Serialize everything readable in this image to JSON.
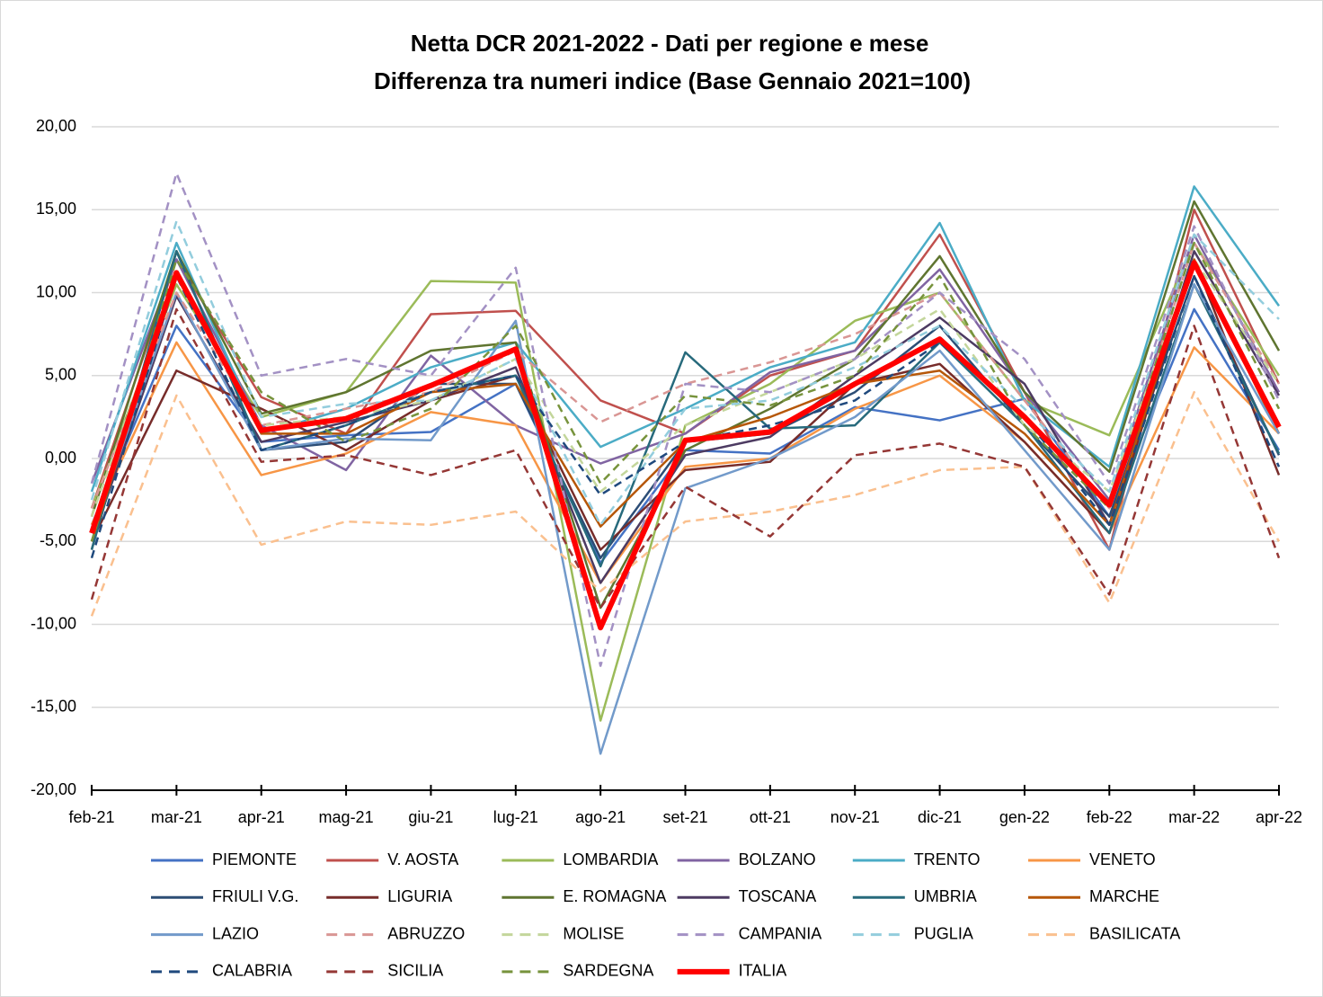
{
  "chart_data": {
    "type": "line",
    "title": "Netta DCR 2021-2022 - Dati per regione e mese",
    "subtitle": "Differenza tra numeri indice (Base Gennaio 2021=100)",
    "categories": [
      "feb-21",
      "mar-21",
      "apr-21",
      "mag-21",
      "giu-21",
      "lug-21",
      "ago-21",
      "set-21",
      "ott-21",
      "nov-21",
      "dic-21",
      "gen-22",
      "feb-22",
      "mar-22",
      "apr-22"
    ],
    "ylim": [
      -20,
      20
    ],
    "yticks": [
      {
        "value": -20,
        "label": "-20,00"
      },
      {
        "value": -15,
        "label": "-15,00"
      },
      {
        "value": -10,
        "label": "-10,00"
      },
      {
        "value": -5,
        "label": "-5,00"
      },
      {
        "value": 0,
        "label": "0,00"
      },
      {
        "value": 5,
        "label": "5,00"
      },
      {
        "value": 10,
        "label": "10,00"
      },
      {
        "value": 15,
        "label": "15,00"
      },
      {
        "value": 20,
        "label": "20,00"
      }
    ],
    "grid": true,
    "series": [
      {
        "name": "PIEMONTE",
        "color": "#4472c4",
        "values": [
          -4,
          8,
          1,
          1.4,
          1.6,
          4.5,
          -6.3,
          0.5,
          0.3,
          3.1,
          2.3,
          3.6,
          -3.5,
          9,
          0.5
        ]
      },
      {
        "name": "V. AOSTA",
        "color": "#c0504d",
        "values": [
          -3,
          12,
          3.7,
          1.5,
          8.7,
          8.9,
          3.5,
          1.5,
          5,
          6.5,
          13.5,
          4,
          -5.5,
          15,
          4.5
        ]
      },
      {
        "name": "LOMBARDIA",
        "color": "#9bbb59",
        "values": [
          -3,
          10.5,
          2.5,
          4,
          10.7,
          10.6,
          -15.8,
          2,
          4.5,
          8.3,
          10,
          3.5,
          1.4,
          13,
          5
        ]
      },
      {
        "name": "BOLZANO",
        "color": "#8064a2",
        "values": [
          -1.5,
          12,
          2,
          -0.7,
          6.2,
          2,
          -0.3,
          1.5,
          5.2,
          6.5,
          11.4,
          4,
          -2.5,
          13.5,
          4
        ]
      },
      {
        "name": "TRENTO",
        "color": "#4bacc6",
        "values": [
          -2,
          13,
          1.5,
          3,
          5.5,
          7,
          0.7,
          3,
          5.5,
          7,
          14.2,
          3.5,
          -0.5,
          16.4,
          9.2
        ]
      },
      {
        "name": "VENETO",
        "color": "#f79646",
        "values": [
          -4,
          7,
          -1,
          0.3,
          2.8,
          2,
          -7.5,
          -0.5,
          0,
          3,
          5,
          1,
          -4.5,
          6.7,
          1.5
        ]
      },
      {
        "name": "FRIULI V.G.",
        "color": "#2c4d75",
        "values": [
          -5.5,
          12.5,
          0.5,
          1,
          4.5,
          4.5,
          -6,
          1,
          1.5,
          4,
          8,
          2,
          -3.5,
          11,
          0.2
        ]
      },
      {
        "name": "LIGURIA",
        "color": "#772c2a",
        "values": [
          -5,
          5.3,
          3,
          0.5,
          3.5,
          5,
          -5.5,
          -0.7,
          -0.2,
          4.5,
          5.7,
          1,
          -4.5,
          12,
          -1
        ]
      },
      {
        "name": "E. ROMAGNA",
        "color": "#5f7530",
        "values": [
          -3.5,
          12.5,
          2.7,
          4,
          6.5,
          7,
          -9,
          0.5,
          3,
          6,
          12.2,
          4,
          -0.8,
          15.5,
          6.5
        ]
      },
      {
        "name": "TOSCANA",
        "color": "#4d3b62",
        "values": [
          -5,
          9.8,
          1,
          2.2,
          3.5,
          5.5,
          -7.5,
          0.2,
          1.3,
          5,
          8.5,
          4.5,
          -4,
          12.5,
          3.8
        ]
      },
      {
        "name": "UMBRIA",
        "color": "#276a7c",
        "values": [
          -5.5,
          12.5,
          0.5,
          2,
          4,
          5,
          -6.5,
          6.4,
          1.8,
          2,
          7,
          2,
          -4.5,
          10.5,
          0.3
        ]
      },
      {
        "name": "MARCHE",
        "color": "#b65708",
        "values": [
          -5,
          11,
          1.5,
          1.5,
          4,
          4.5,
          -4.1,
          1,
          2.5,
          4.5,
          5.3,
          1.5,
          -4,
          12,
          1.5
        ]
      },
      {
        "name": "LAZIO",
        "color": "#729aca",
        "values": [
          -4.5,
          10,
          0.5,
          1.2,
          1.1,
          8.3,
          -17.8,
          -1.8,
          0,
          2.5,
          6.5,
          0.5,
          -5.5,
          10.5,
          1.5
        ]
      },
      {
        "name": "ABRUZZO",
        "color": "#d99694",
        "dashed": true,
        "values": [
          -3,
          10,
          2,
          3,
          4,
          6.5,
          2.2,
          4.5,
          5.8,
          7.5,
          10,
          3.5,
          -3,
          13,
          4.5
        ]
      },
      {
        "name": "MOLISE",
        "color": "#c3d69b",
        "dashed": true,
        "values": [
          -3.5,
          11,
          2,
          2.5,
          3.5,
          6,
          -2,
          2,
          4,
          6,
          9,
          2,
          -2,
          12,
          4.5
        ]
      },
      {
        "name": "CAMPANIA",
        "color": "#a391c4",
        "dashed": true,
        "values": [
          -1.5,
          17.2,
          5,
          6,
          5,
          11.5,
          -12.5,
          4.5,
          4,
          6,
          10,
          6,
          -1.5,
          14,
          3.5
        ]
      },
      {
        "name": "PUGLIA",
        "color": "#93cddd",
        "dashed": true,
        "values": [
          -2.5,
          14.3,
          2.5,
          3.3,
          3.5,
          6,
          -4,
          3,
          3.5,
          5.5,
          8,
          3,
          -2,
          13.5,
          8.4
        ]
      },
      {
        "name": "BASILICATA",
        "color": "#fac08f",
        "dashed": true,
        "values": [
          -9.5,
          3.8,
          -5.2,
          -3.8,
          -4,
          -3.2,
          -8,
          -3.8,
          -3.2,
          -2.2,
          -0.7,
          -0.5,
          -8.7,
          4,
          -5
        ]
      },
      {
        "name": "CALABRIA",
        "color": "#1f497d",
        "dashed": true,
        "values": [
          -6,
          11,
          0.5,
          2,
          4,
          5,
          -2.2,
          1,
          2,
          3.5,
          7,
          2.5,
          -4,
          11,
          -0.5
        ]
      },
      {
        "name": "SICILIA",
        "color": "#953735",
        "dashed": true,
        "values": [
          -8.5,
          9,
          -0.2,
          0.2,
          -1,
          0.5,
          -9,
          -1.7,
          -4.7,
          0.2,
          0.9,
          -0.5,
          -8.2,
          8,
          -6
        ]
      },
      {
        "name": "SARDEGNA",
        "color": "#77933c",
        "dashed": true,
        "values": [
          -5,
          12,
          4,
          1,
          3,
          8,
          -1.5,
          3.8,
          3.2,
          5,
          11,
          2,
          -3,
          13,
          3
        ]
      },
      {
        "name": "ITALIA",
        "color": "#ff0000",
        "line_width": 6,
        "values": [
          -4.5,
          11.2,
          1.7,
          2.4,
          4.4,
          6.6,
          -10.2,
          1.1,
          1.6,
          4.5,
          7.2,
          2.5,
          -2.8,
          11.8,
          1.9
        ]
      }
    ]
  }
}
